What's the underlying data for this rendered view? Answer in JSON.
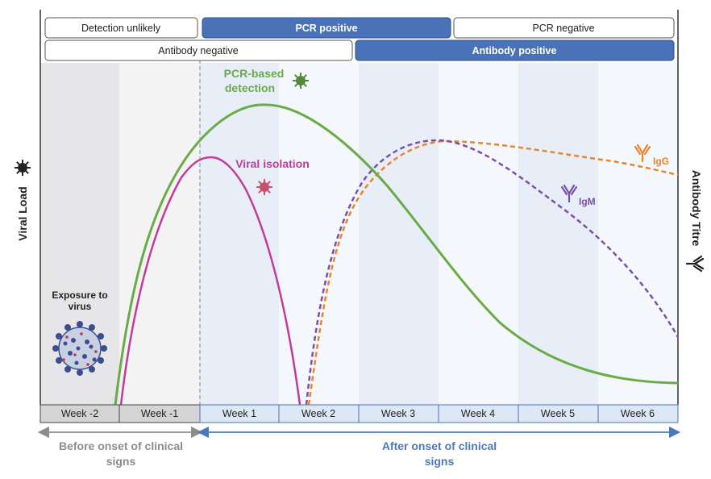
{
  "status_rows": {
    "pcr": [
      {
        "label": "Detection unlikely",
        "filled": false
      },
      {
        "label": "PCR positive",
        "filled": true
      },
      {
        "label": "PCR negative",
        "filled": false
      }
    ],
    "antibody": [
      {
        "label": "Antibody negative",
        "filled": false
      },
      {
        "label": "Antibody positive",
        "filled": true
      }
    ]
  },
  "weeks": [
    "Week -2",
    "Week -1",
    "Week 1",
    "Week 2",
    "Week 3",
    "Week 4",
    "Week 5",
    "Week 6"
  ],
  "axes": {
    "left_label": "Viral Load",
    "right_label": "Antibody Titre"
  },
  "annotations": {
    "exposure": [
      "Exposure to",
      "virus"
    ],
    "pcr_detection": [
      "PCR-based",
      "detection"
    ],
    "viral_isolation": "Viral isolation",
    "igm": "IgM",
    "igg": "IgG"
  },
  "periods": {
    "before": [
      "Before onset of clinical",
      "signs"
    ],
    "after": [
      "After onset of clinical",
      "signs"
    ]
  },
  "colors": {
    "pcr_curve": "#6aab46",
    "isolation_curve": "#c13b9a",
    "igm_curve": "#7b4fa8",
    "igg_curve": "#e8852a",
    "blue_fill": "#4a72b8",
    "before_arrow": "#8c8c8c",
    "after_arrow": "#4a7ab8"
  }
}
